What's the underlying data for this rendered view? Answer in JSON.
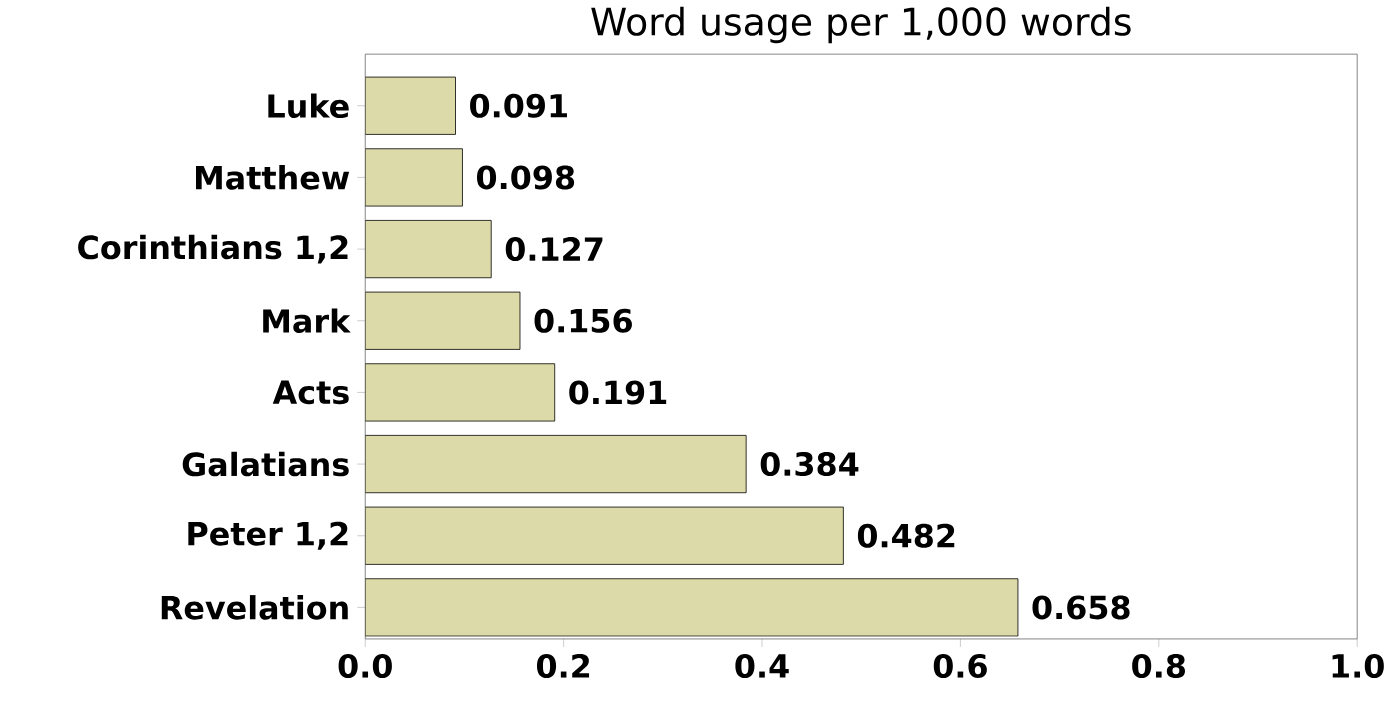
{
  "chart_data": {
    "type": "bar",
    "orientation": "horizontal",
    "title": "Word usage per 1,000 words",
    "categories": [
      "Luke",
      "Matthew",
      "Corinthians 1,2",
      "Mark",
      "Acts",
      "Galatians",
      "Peter 1,2",
      "Revelation"
    ],
    "values": [
      0.091,
      0.098,
      0.127,
      0.156,
      0.191,
      0.384,
      0.482,
      0.658
    ],
    "value_labels": [
      "0.091",
      "0.098",
      "0.127",
      "0.156",
      "0.191",
      "0.384",
      "0.482",
      "0.658"
    ],
    "color": "#dcdaa8",
    "xlim": [
      0,
      1.0
    ],
    "xticks": [
      {
        "value": 0,
        "label": "0.0"
      },
      {
        "value": 0.2,
        "label": "0.2"
      },
      {
        "value": 0.4,
        "label": "0.4"
      },
      {
        "value": 0.6,
        "label": "0.6"
      },
      {
        "value": 0.8,
        "label": "0.8"
      },
      {
        "value": 1.0,
        "label": "1.0"
      }
    ],
    "grid": false
  }
}
